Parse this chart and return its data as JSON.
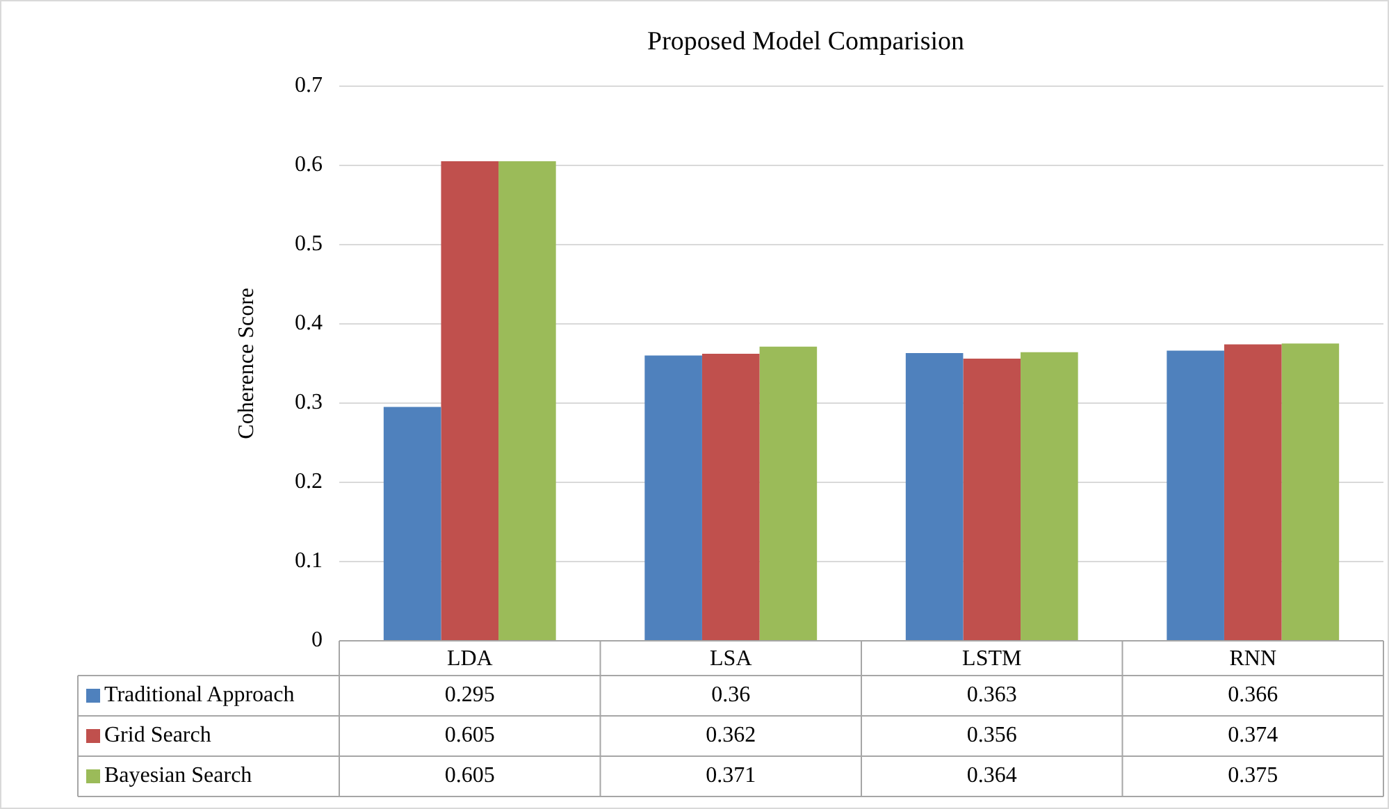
{
  "chart_data": {
    "type": "bar",
    "title": "Proposed Model Comparision",
    "ylabel": "Coherence Score",
    "categories": [
      "LDA",
      "LSA",
      "LSTM",
      "RNN"
    ],
    "series": [
      {
        "name": "Traditional Approach",
        "color": "#4f81bd",
        "values": [
          0.295,
          0.36,
          0.363,
          0.366
        ]
      },
      {
        "name": "Grid Search",
        "color": "#c0504d",
        "values": [
          0.605,
          0.362,
          0.356,
          0.374
        ]
      },
      {
        "name": "Bayesian Search",
        "color": "#9bbb59",
        "values": [
          0.605,
          0.371,
          0.364,
          0.375
        ]
      }
    ],
    "ylim": [
      0,
      0.7
    ],
    "yticks": [
      0,
      0.1,
      0.2,
      0.3,
      0.4,
      0.5,
      0.6,
      0.7
    ],
    "grid": "y",
    "legend": "bottom",
    "data_labels": true
  }
}
